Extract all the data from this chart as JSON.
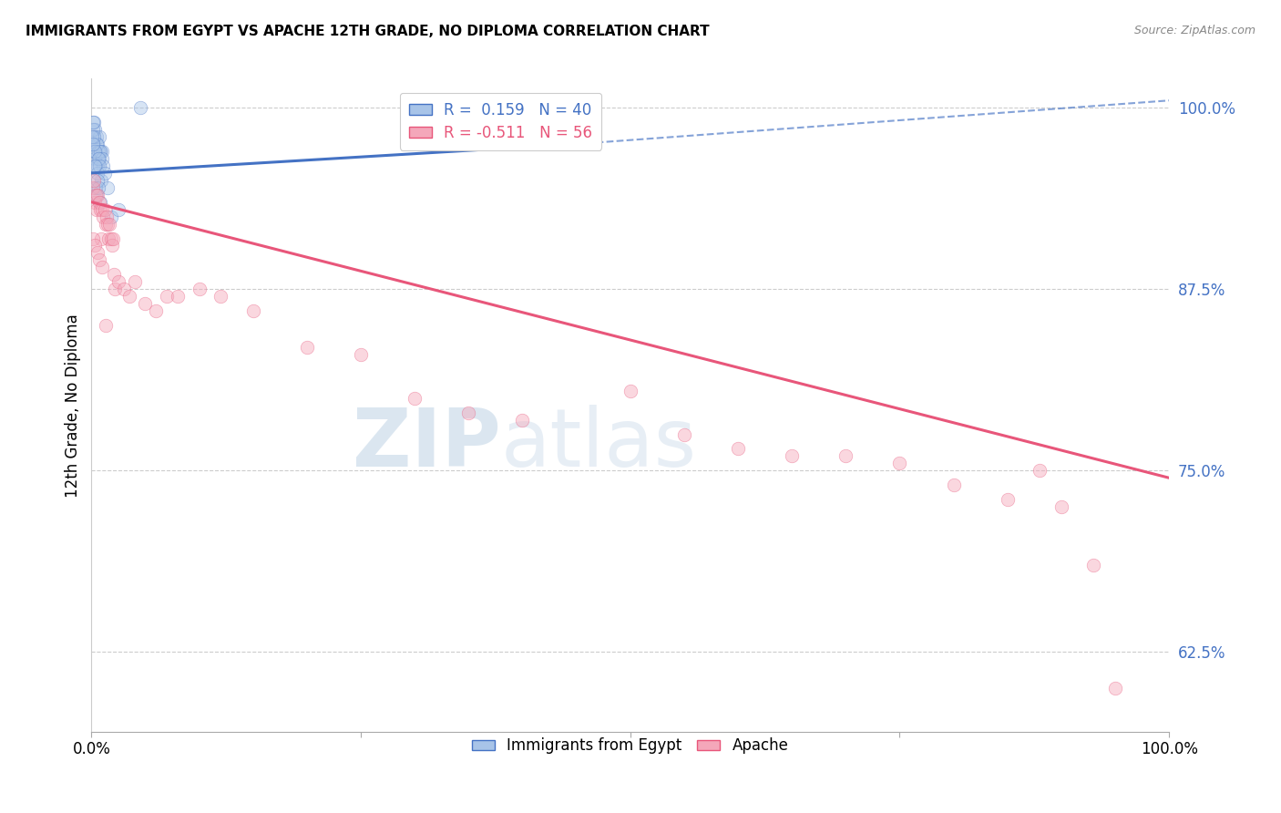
{
  "title": "IMMIGRANTS FROM EGYPT VS APACHE 12TH GRADE, NO DIPLOMA CORRELATION CHART",
  "source": "Source: ZipAtlas.com",
  "ylabel": "12th Grade, No Diploma",
  "legend_entry1": "R =  0.159   N = 40",
  "legend_entry2": "R = -0.511   N = 56",
  "blue_color": "#4472C4",
  "pink_color": "#E8567A",
  "blue_fill": "#A8C4E8",
  "pink_fill": "#F4A7BA",
  "blue_scatter_x": [
    0.1,
    0.2,
    0.3,
    0.4,
    0.5,
    0.6,
    0.7,
    0.8,
    0.9,
    1.0,
    0.15,
    0.25,
    0.35,
    0.45,
    0.55,
    0.65,
    0.75,
    0.85,
    0.95,
    1.1,
    0.12,
    0.22,
    0.32,
    0.42,
    0.52,
    0.62,
    0.72,
    1.2,
    1.5,
    1.8,
    0.08,
    0.18,
    0.28,
    0.38,
    0.48,
    0.58,
    0.68,
    0.78,
    2.5,
    4.5
  ],
  "blue_scatter_y": [
    97.5,
    99.0,
    98.5,
    97.0,
    98.0,
    97.5,
    98.0,
    97.0,
    95.0,
    97.0,
    98.5,
    97.0,
    96.5,
    97.5,
    96.0,
    97.0,
    96.5,
    97.0,
    96.5,
    96.0,
    99.0,
    98.0,
    97.0,
    96.0,
    95.5,
    96.5,
    96.0,
    95.5,
    94.5,
    92.5,
    98.0,
    97.5,
    96.0,
    94.5,
    94.0,
    95.0,
    94.5,
    93.5,
    93.0,
    100.0
  ],
  "pink_scatter_x": [
    0.1,
    0.2,
    0.3,
    0.4,
    0.5,
    0.6,
    0.7,
    0.8,
    0.9,
    1.0,
    1.1,
    1.2,
    1.3,
    1.4,
    1.5,
    1.6,
    1.7,
    1.8,
    1.9,
    2.0,
    2.1,
    2.2,
    2.5,
    3.0,
    3.5,
    4.0,
    5.0,
    6.0,
    7.0,
    8.0,
    10.0,
    12.0,
    15.0,
    20.0,
    25.0,
    30.0,
    35.0,
    40.0,
    50.0,
    55.0,
    60.0,
    65.0,
    70.0,
    75.0,
    80.0,
    85.0,
    88.0,
    90.0,
    93.0,
    95.0,
    0.15,
    0.35,
    0.55,
    0.75,
    0.95,
    1.3
  ],
  "pink_scatter_y": [
    94.5,
    95.0,
    93.5,
    94.0,
    93.0,
    94.0,
    93.5,
    93.0,
    91.0,
    93.0,
    92.5,
    93.0,
    92.0,
    92.5,
    92.0,
    91.0,
    92.0,
    91.0,
    90.5,
    91.0,
    88.5,
    87.5,
    88.0,
    87.5,
    87.0,
    88.0,
    86.5,
    86.0,
    87.0,
    87.0,
    87.5,
    87.0,
    86.0,
    83.5,
    83.0,
    80.0,
    79.0,
    78.5,
    80.5,
    77.5,
    76.5,
    76.0,
    76.0,
    75.5,
    74.0,
    73.0,
    75.0,
    72.5,
    68.5,
    60.0,
    91.0,
    90.5,
    90.0,
    89.5,
    89.0,
    85.0
  ],
  "blue_line_x0": 0.0,
  "blue_line_y0": 95.5,
  "blue_line_x1": 45.0,
  "blue_line_y1": 97.5,
  "blue_dash_x0": 45.0,
  "blue_dash_y0": 97.5,
  "blue_dash_x1": 100.0,
  "blue_dash_y1": 100.5,
  "pink_line_x0": 0.0,
  "pink_line_y0": 93.5,
  "pink_line_x1": 100.0,
  "pink_line_y1": 74.5,
  "xlim": [
    0,
    100
  ],
  "ylim": [
    57,
    102
  ],
  "yticks": [
    62.5,
    75.0,
    87.5,
    100.0
  ],
  "xticks": [
    0,
    25,
    50,
    75,
    100
  ],
  "xtick_labels": [
    "0.0%",
    "",
    "",
    "",
    "100.0%"
  ],
  "ytick_labels": [
    "62.5%",
    "75.0%",
    "87.5%",
    "100.0%"
  ],
  "watermark_zip": "ZIP",
  "watermark_atlas": "atlas",
  "marker_size": 110,
  "marker_alpha": 0.45,
  "line_width": 2.2
}
